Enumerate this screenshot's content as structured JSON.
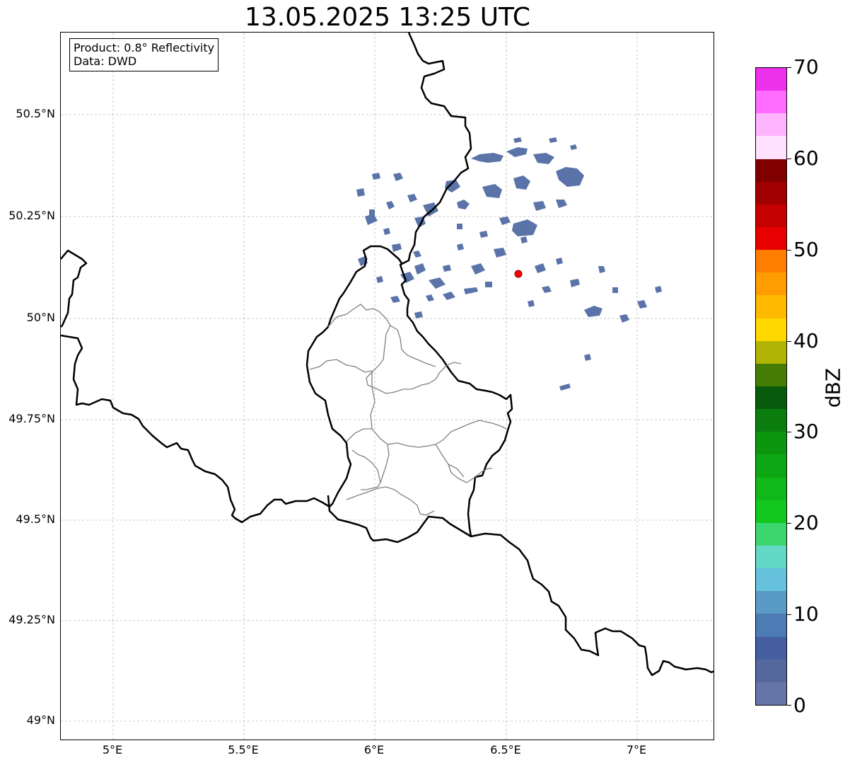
{
  "title": "13.05.2025 13:25 UTC",
  "info": {
    "product": "Product: 0.8° Reflectivity",
    "data": "Data: DWD"
  },
  "axes": {
    "lat_ticks": [
      "50.5°N",
      "50.25°N",
      "50°N",
      "49.75°N",
      "49.5°N",
      "49.25°N",
      "49°N"
    ],
    "lon_ticks": [
      "5°E",
      "5.5°E",
      "6°E",
      "6.5°E",
      "7°E"
    ]
  },
  "colorbar": {
    "label": "dBZ",
    "ticks": [
      "0",
      "10",
      "20",
      "30",
      "40",
      "50",
      "60",
      "70"
    ],
    "min": 0,
    "max": 70,
    "colors": [
      "#6675a8",
      "#55689e",
      "#445ea0",
      "#4d7bb4",
      "#599bc6",
      "#66c2dc",
      "#64d8c6",
      "#3cd66e",
      "#12c81e",
      "#10b81a",
      "#0ea714",
      "#0c9610",
      "#0a7d0e",
      "#085a0c",
      "#447c06",
      "#b2b404",
      "#ffd800",
      "#ffba00",
      "#ff9c00",
      "#ff7e00",
      "#e60000",
      "#c40000",
      "#a20000",
      "#800000",
      "#ffe0ff",
      "#ffb4ff",
      "#ff6cff",
      "#ec30ec"
    ]
  },
  "radar_site": {
    "color": "#ff0000"
  },
  "echo_color": "#5a73a8",
  "grid": true
}
